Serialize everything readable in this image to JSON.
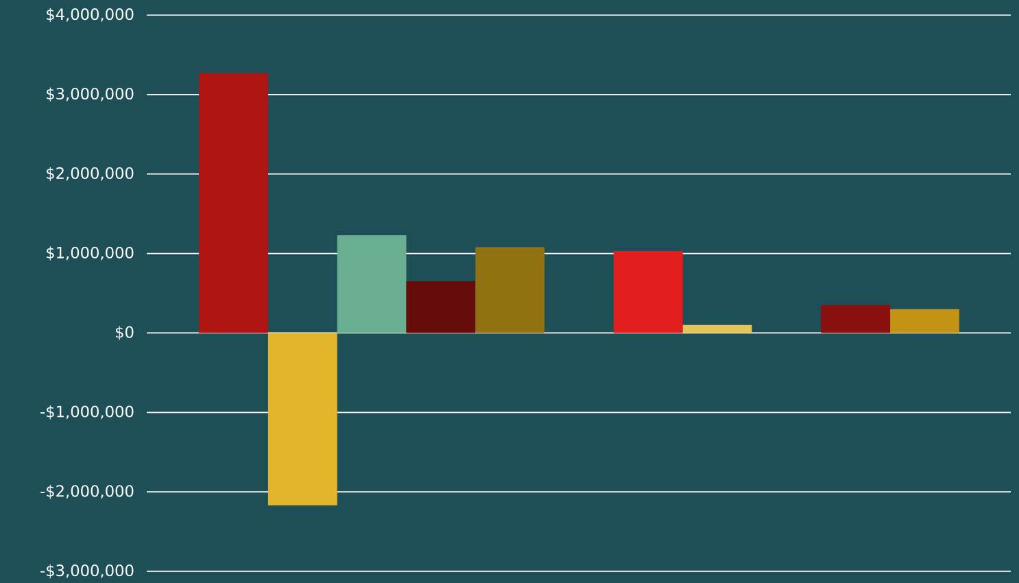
{
  "chart_data": {
    "type": "bar",
    "categories": [
      null,
      null,
      null,
      null,
      null,
      null,
      null,
      null,
      null,
      null,
      null,
      null,
      null
    ],
    "values": [
      null,
      3270000,
      -2170000,
      1230000,
      650000,
      1080000,
      null,
      1030000,
      100000,
      null,
      350000,
      300000,
      null
    ],
    "colors": [
      null,
      "#ae1513",
      "#e3b52a",
      "#6aae91",
      "#660d0b",
      "#917213",
      null,
      "#e31e1e",
      "#e6c457",
      null,
      "#8a1010",
      "#c29314",
      null
    ],
    "ylim": [
      -3000000,
      4000000
    ],
    "yticks": [
      {
        "value": -3000000,
        "label": "-$3,000,000"
      },
      {
        "value": -2000000,
        "label": "-$2,000,000"
      },
      {
        "value": -1000000,
        "label": "-$1,000,000"
      },
      {
        "value": 0,
        "label": "$0"
      },
      {
        "value": 1000000,
        "label": "$1,000,000"
      },
      {
        "value": 2000000,
        "label": "$2,000,000"
      },
      {
        "value": 3000000,
        "label": "$3,000,000"
      },
      {
        "value": 4000000,
        "label": "$4,000,000"
      }
    ],
    "grid": "y",
    "tick_labels": "y"
  }
}
